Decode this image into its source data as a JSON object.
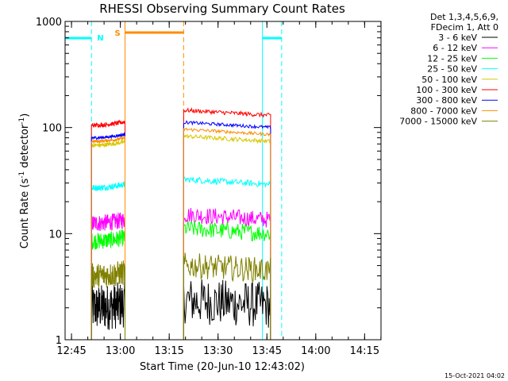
{
  "chart_data": {
    "type": "line",
    "title": "RHESSI Observing Summary Count Rates",
    "xlabel": "Start Time (20-Jun-10 12:43:02)",
    "ylabel_main": "Count Rate (s",
    "ylabel_sup1": "-1",
    "ylabel_mid": " detector",
    "ylabel_sup2": "-1",
    "ylabel_end": ")",
    "y_scale": "log",
    "ylim": [
      1,
      1000
    ],
    "xlim_minutes": [
      0,
      97
    ],
    "x_ticks": [
      {
        "label": "12:45",
        "minute": 1.97
      },
      {
        "label": "13:00",
        "minute": 16.97
      },
      {
        "label": "13:15",
        "minute": 31.97
      },
      {
        "label": "13:30",
        "minute": 46.97
      },
      {
        "label": "13:45",
        "minute": 61.97
      },
      {
        "label": "14:00",
        "minute": 76.97
      },
      {
        "label": "14:15",
        "minute": 91.97
      }
    ],
    "y_ticks": [
      {
        "label": "1",
        "value": 1
      },
      {
        "label": "10",
        "value": 10
      },
      {
        "label": "100",
        "value": 100
      },
      {
        "label": "1000",
        "value": 1000
      }
    ],
    "legend_header": [
      "Det 1,3,4,5,6,9,",
      "FDecim 1, Att 0"
    ],
    "series": [
      {
        "name": "3 - 6 keV",
        "color": "#000000",
        "level1": 2.0,
        "level2": 2.1,
        "jitter": 0.22
      },
      {
        "name": "6 - 12 keV",
        "color": "#ff00ff",
        "level1": 12.5,
        "level2": 13.5,
        "jitter": 0.08
      },
      {
        "name": "12 - 25 keV",
        "color": "#00ff00",
        "level1": 8.5,
        "level2": 10.0,
        "jitter": 0.08
      },
      {
        "name": "25 - 50 keV",
        "color": "#00ffff",
        "level1": 27,
        "level2": 29,
        "jitter": 0.03
      },
      {
        "name": "50 - 100 keV",
        "color": "#d8c800",
        "level1": 68,
        "level2": 74,
        "jitter": 0.02
      },
      {
        "name": "100 - 300 keV",
        "color": "#ff0000",
        "level1": 105,
        "level2": 130,
        "jitter": 0.02
      },
      {
        "name": "300 - 800 keV",
        "color": "#0000ff",
        "level1": 80,
        "level2": 100,
        "jitter": 0.015
      },
      {
        "name": "800 - 7000 keV",
        "color": "#ff8c00",
        "level1": 74,
        "level2": 86,
        "jitter": 0.015
      },
      {
        "name": "7000 - 15000 keV",
        "color": "#808000",
        "level1": 4.0,
        "level2": 4.5,
        "jitter": 0.12
      }
    ],
    "segments": [
      {
        "start": 8.1,
        "end": 18.4
      },
      {
        "start": 36.4,
        "end": 63.1
      }
    ],
    "flags": {
      "night": {
        "label": "N",
        "color": "#00ffff",
        "intervals": [
          [
            -0.8,
            8.1
          ],
          [
            60.6,
            66.5
          ]
        ]
      },
      "saa": {
        "label": "S",
        "color": "#ff8c00",
        "intervals": [
          [
            18.4,
            36.4
          ]
        ]
      }
    },
    "timestamp": "15-Oct-2021 04:02"
  }
}
